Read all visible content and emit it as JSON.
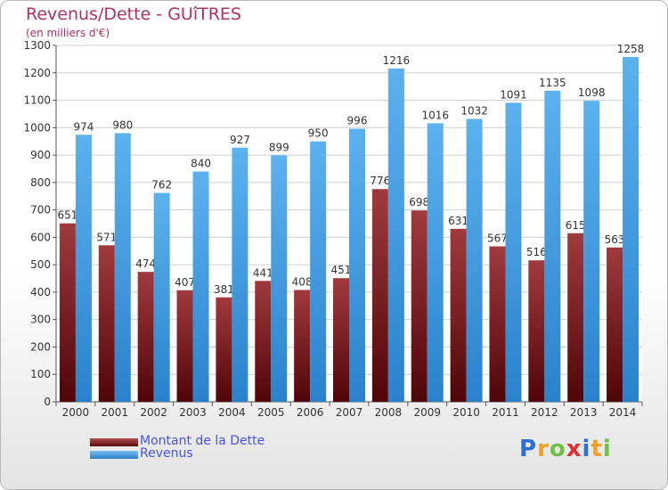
{
  "chart_data": {
    "type": "bar",
    "title": "Revenus/Dette - GUîTRES",
    "subtitle": "(en milliers d'€)",
    "categories": [
      "2000",
      "2001",
      "2002",
      "2003",
      "2004",
      "2005",
      "2006",
      "2007",
      "2008",
      "2009",
      "2010",
      "2011",
      "2012",
      "2013",
      "2014"
    ],
    "series": [
      {
        "name": "Montant de la Dette",
        "color": "#7a1f22",
        "values": [
          651,
          571,
          474,
          407,
          381,
          441,
          408,
          451,
          776,
          698,
          631,
          567,
          516,
          615,
          563
        ]
      },
      {
        "name": "Revenus",
        "color": "#4aa3e8",
        "values": [
          974,
          980,
          762,
          840,
          927,
          899,
          950,
          996,
          1216,
          1016,
          1032,
          1091,
          1135,
          1098,
          1258
        ]
      }
    ],
    "ylim": [
      0,
      1300
    ],
    "yticks": [
      0,
      100,
      200,
      300,
      400,
      500,
      600,
      700,
      800,
      900,
      1000,
      1100,
      1200,
      1300
    ],
    "grid": true,
    "legend_position": "bottom-left"
  },
  "logo": {
    "letters": [
      "P",
      "r",
      "o",
      "x",
      "i",
      "t",
      "i"
    ],
    "colors": [
      "#2f6fd0",
      "#f0a020",
      "#6fc04a",
      "#e03030",
      "#2f6fd0",
      "#f0a020",
      "#6fc04a"
    ]
  }
}
